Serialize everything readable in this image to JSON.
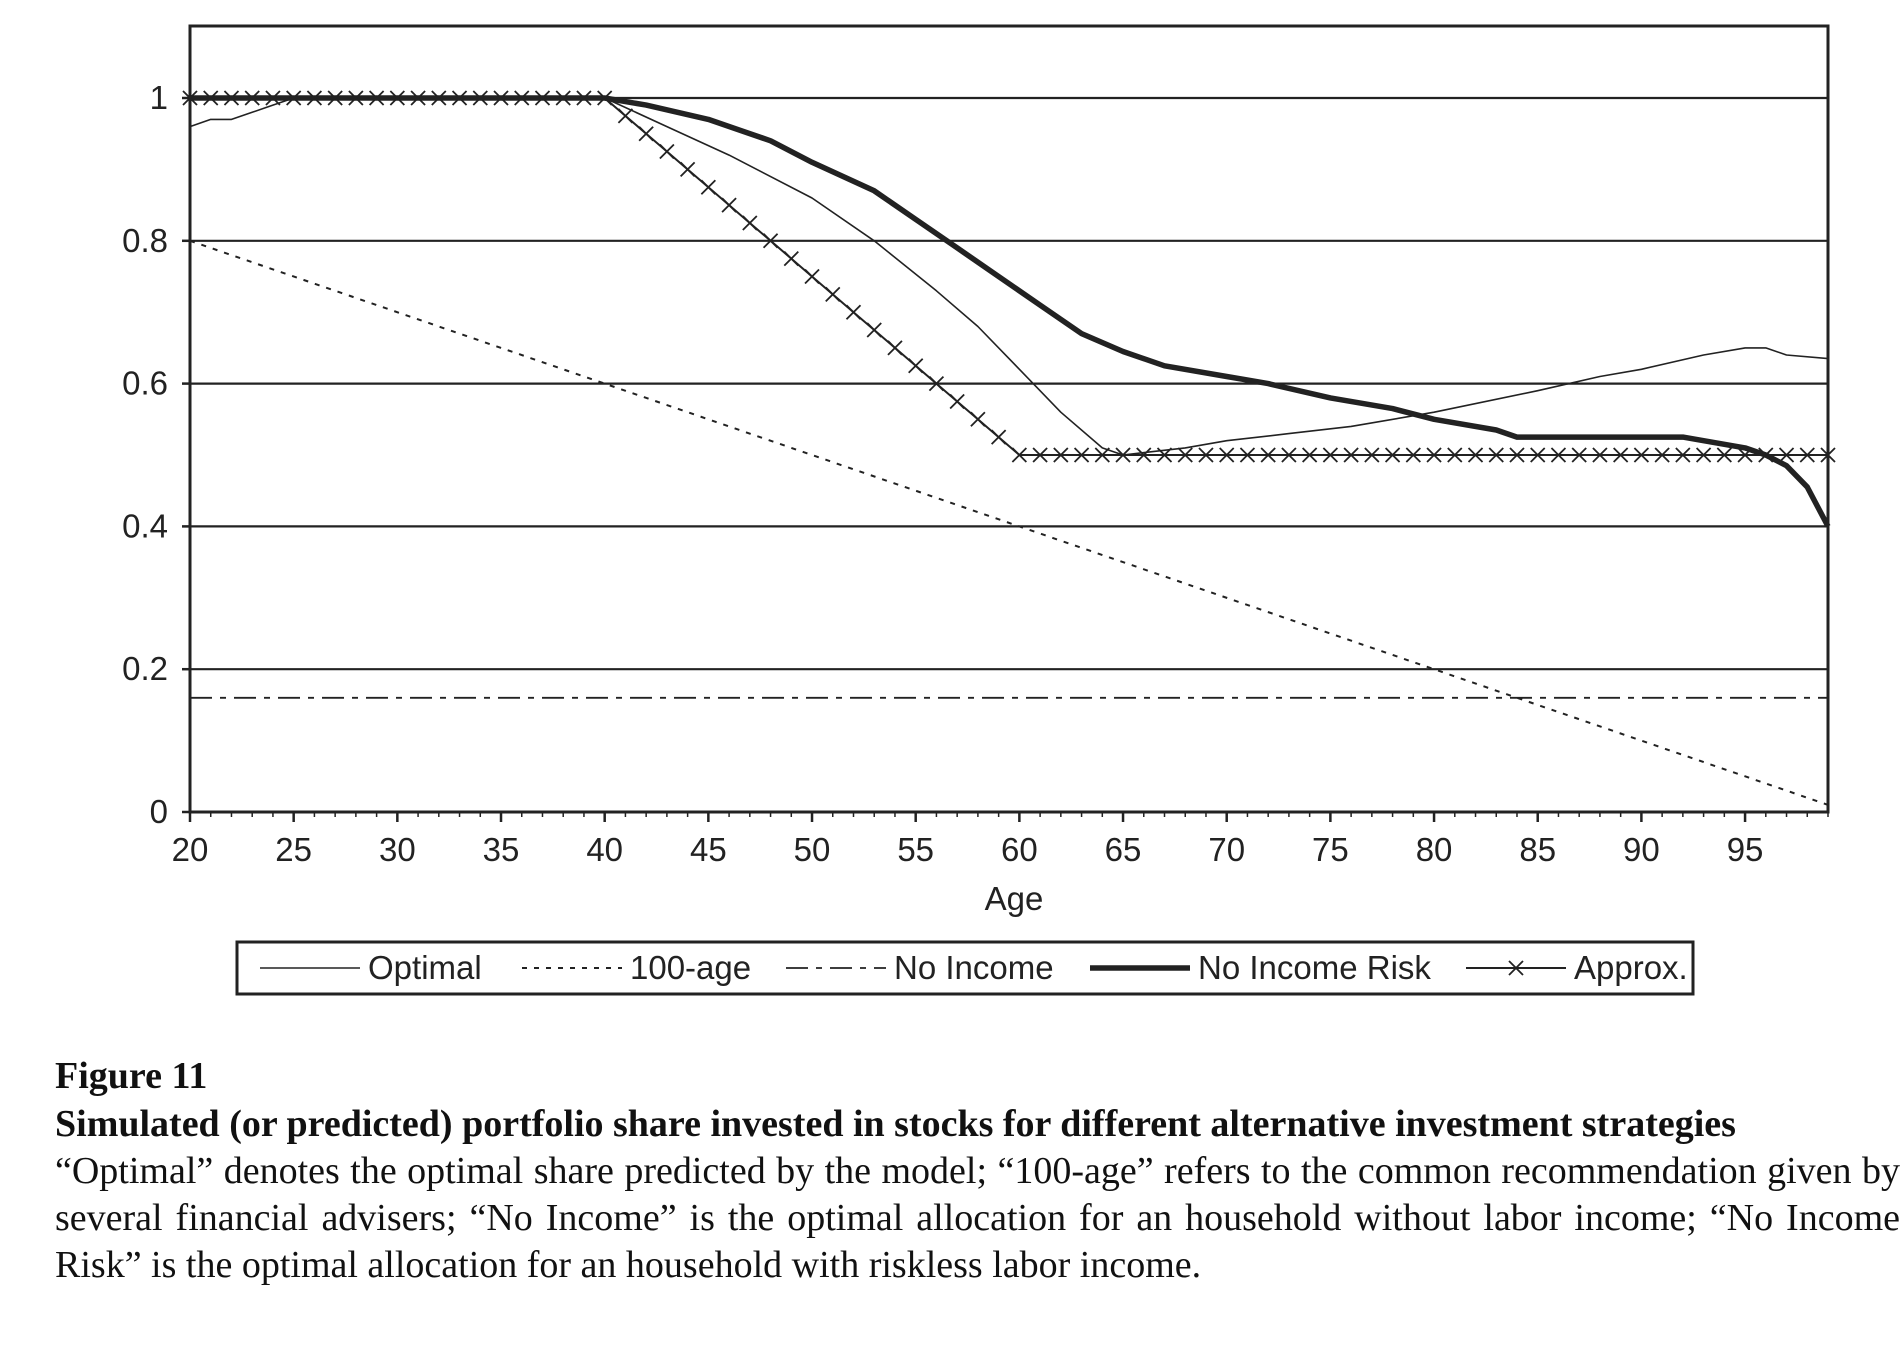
{
  "chart_data": {
    "type": "line",
    "xlabel": "Age",
    "ylabel": "",
    "xlim": [
      20,
      99
    ],
    "ylim": [
      0,
      1.1
    ],
    "xticks": [
      20,
      25,
      30,
      35,
      40,
      45,
      50,
      55,
      60,
      65,
      70,
      75,
      80,
      85,
      90,
      95
    ],
    "yticks": [
      0,
      0.2,
      0.4,
      0.6,
      0.8,
      1
    ],
    "ytick_labels": [
      "0",
      "0.2",
      "0.4",
      "0.6",
      "0.8",
      "1"
    ],
    "grid": "horizontal",
    "legend_position": "bottom",
    "series": [
      {
        "name": "Optimal",
        "style": "thin-solid",
        "x": [
          20,
          21,
          22,
          23,
          24,
          25,
          30,
          35,
          40,
          43,
          46,
          50,
          53,
          56,
          58,
          60,
          62,
          64,
          65,
          68,
          70,
          73,
          76,
          80,
          85,
          88,
          90,
          93,
          95,
          96,
          97,
          99
        ],
        "y": [
          0.96,
          0.97,
          0.97,
          0.98,
          0.99,
          1.0,
          1.0,
          1.0,
          1.0,
          0.96,
          0.92,
          0.86,
          0.8,
          0.73,
          0.68,
          0.62,
          0.56,
          0.51,
          0.5,
          0.51,
          0.52,
          0.53,
          0.54,
          0.56,
          0.59,
          0.61,
          0.62,
          0.64,
          0.65,
          0.65,
          0.64,
          0.635
        ]
      },
      {
        "name": "100-age",
        "style": "dotted",
        "x": [
          20,
          99
        ],
        "y": [
          0.8,
          0.01
        ]
      },
      {
        "name": "No Income",
        "style": "dash-dot",
        "x": [
          20,
          99
        ],
        "y": [
          0.16,
          0.16
        ]
      },
      {
        "name": "No Income Risk",
        "style": "thick-solid",
        "x": [
          20,
          40,
          42,
          45,
          48,
          50,
          53,
          55,
          57,
          59,
          61,
          63,
          65,
          67,
          70,
          72,
          75,
          78,
          80,
          83,
          84,
          87,
          92,
          95,
          96,
          97,
          98,
          99
        ],
        "y": [
          1.0,
          1.0,
          0.99,
          0.97,
          0.94,
          0.91,
          0.87,
          0.83,
          0.79,
          0.75,
          0.71,
          0.67,
          0.645,
          0.625,
          0.61,
          0.6,
          0.58,
          0.565,
          0.55,
          0.535,
          0.525,
          0.525,
          0.525,
          0.51,
          0.5,
          0.485,
          0.455,
          0.4
        ]
      },
      {
        "name": "Approx.",
        "style": "solid-x-markers",
        "x": [
          20,
          21,
          22,
          23,
          24,
          25,
          26,
          27,
          28,
          29,
          30,
          31,
          32,
          33,
          34,
          35,
          36,
          37,
          38,
          39,
          40,
          41,
          42,
          43,
          44,
          45,
          46,
          47,
          48,
          49,
          50,
          51,
          52,
          53,
          54,
          55,
          56,
          57,
          58,
          59,
          60,
          61,
          62,
          63,
          64,
          65,
          66,
          67,
          68,
          69,
          70,
          71,
          72,
          73,
          74,
          75,
          76,
          77,
          78,
          79,
          80,
          81,
          82,
          83,
          84,
          85,
          86,
          87,
          88,
          89,
          90,
          91,
          92,
          93,
          94,
          95,
          96,
          97,
          98,
          99
        ],
        "y": [
          1,
          1,
          1,
          1,
          1,
          1,
          1,
          1,
          1,
          1,
          1,
          1,
          1,
          1,
          1,
          1,
          1,
          1,
          1,
          1,
          1,
          0.975,
          0.95,
          0.925,
          0.9,
          0.875,
          0.85,
          0.825,
          0.8,
          0.775,
          0.75,
          0.725,
          0.7,
          0.675,
          0.65,
          0.625,
          0.6,
          0.575,
          0.55,
          0.525,
          0.5,
          0.5,
          0.5,
          0.5,
          0.5,
          0.5,
          0.5,
          0.5,
          0.5,
          0.5,
          0.5,
          0.5,
          0.5,
          0.5,
          0.5,
          0.5,
          0.5,
          0.5,
          0.5,
          0.5,
          0.5,
          0.5,
          0.5,
          0.5,
          0.5,
          0.5,
          0.5,
          0.5,
          0.5,
          0.5,
          0.5,
          0.5,
          0.5,
          0.5,
          0.5,
          0.5,
          0.5,
          0.5,
          0.5,
          0.5
        ]
      }
    ]
  },
  "caption": {
    "figure_label": "Figure 11",
    "title": "Simulated (or predicted) portfolio share invested in stocks for different alternative investment strategies",
    "description": "“Optimal” denotes the optimal share predicted by the model; “100-age” refers to the common recommendation given by several financial advisers; “No Income” is the optimal allocation for an household without labor income; “No Income Risk” is the optimal allocation for an household with riskless labor income."
  },
  "colors": {
    "line": "#222222",
    "grid": "#222222",
    "background": "#ffffff"
  }
}
